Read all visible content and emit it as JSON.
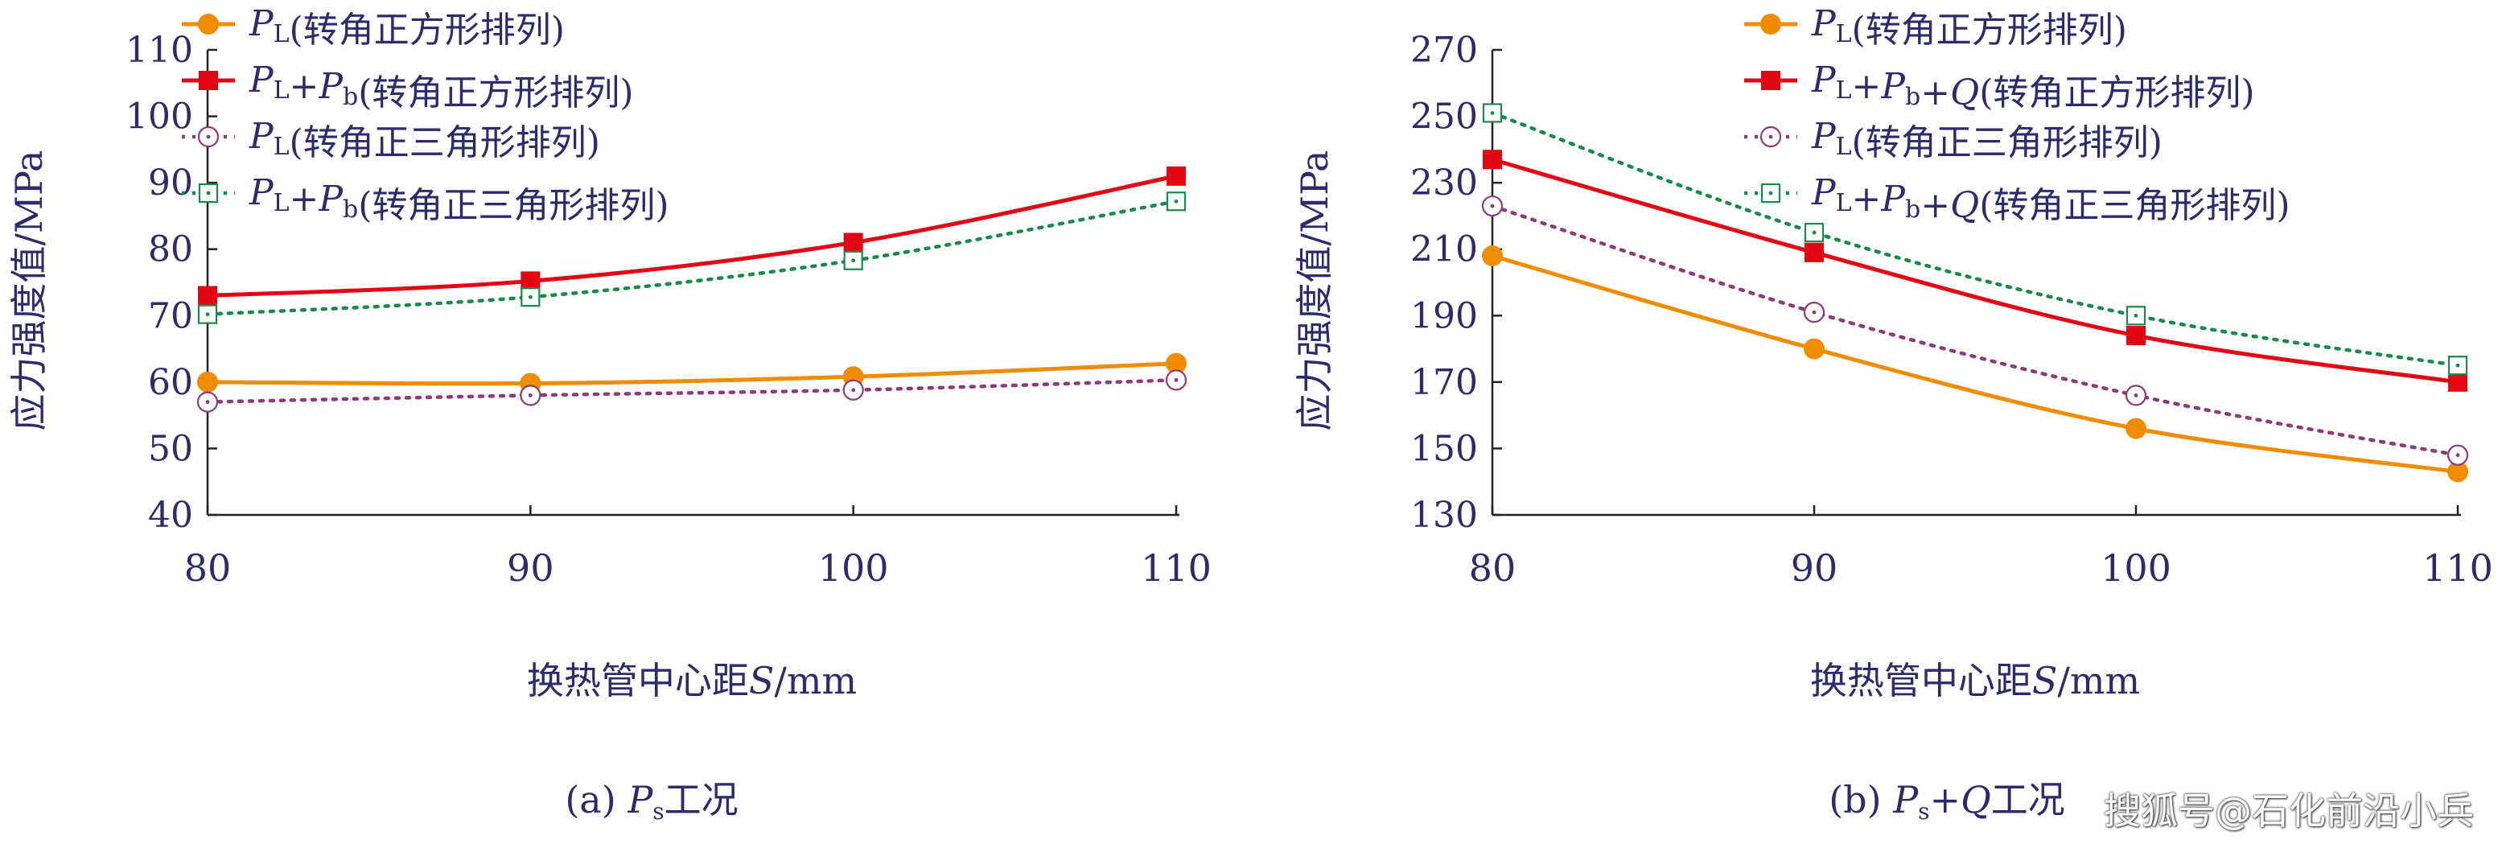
{
  "colors": {
    "axis_text": "#2e2a6b",
    "orange": "#f08c00",
    "red": "#e30613",
    "purple": "#8c3a7a",
    "green": "#1a8a4a"
  },
  "watermark": "搜狐号@石化前沿小兵",
  "chart_data": [
    {
      "type": "line",
      "caption": "(a) Ps工况",
      "xlabel": "换热管中心距S/mm",
      "ylabel": "应力强度值/MPa",
      "x": [
        80,
        90,
        100,
        110
      ],
      "xlim": [
        80,
        110
      ],
      "ylim": [
        40,
        110
      ],
      "yticks": [
        40,
        50,
        60,
        70,
        80,
        90,
        100,
        110
      ],
      "legend_position": "top-left",
      "series": [
        {
          "name": "PL(转角正方形排列)",
          "values": [
            60,
            59.8,
            60.8,
            62.8
          ]
        },
        {
          "name": "PL+Pb(转角正方形排列)",
          "values": [
            73,
            75.2,
            81,
            91
          ]
        },
        {
          "name": "PL(转角正三角形排列)",
          "values": [
            57,
            58,
            58.8,
            60.3
          ]
        },
        {
          "name": "PL+Pb(转角正三角形排列)",
          "values": [
            70.2,
            72.8,
            78.3,
            87.2
          ]
        }
      ]
    },
    {
      "type": "line",
      "caption": "(b) Ps+Q工况",
      "xlabel": "换热管中心距S/mm",
      "ylabel": "应力强度值/MPa",
      "x": [
        80,
        90,
        100,
        110
      ],
      "xlim": [
        80,
        110
      ],
      "ylim": [
        130,
        270
      ],
      "yticks": [
        130,
        150,
        170,
        190,
        210,
        230,
        250,
        270
      ],
      "legend_position": "top-right",
      "series": [
        {
          "name": "PL(转角正方形排列)",
          "values": [
            208,
            180,
            156,
            143
          ]
        },
        {
          "name": "PL+Pb+Q(转角正方形排列)",
          "values": [
            237,
            209,
            184,
            170
          ]
        },
        {
          "name": "PL(转角正三角形排列)",
          "values": [
            223,
            191,
            166,
            148
          ]
        },
        {
          "name": "PL+Pb+Q(转角正三角形排列)",
          "values": [
            251,
            215,
            190,
            175
          ]
        }
      ]
    }
  ]
}
